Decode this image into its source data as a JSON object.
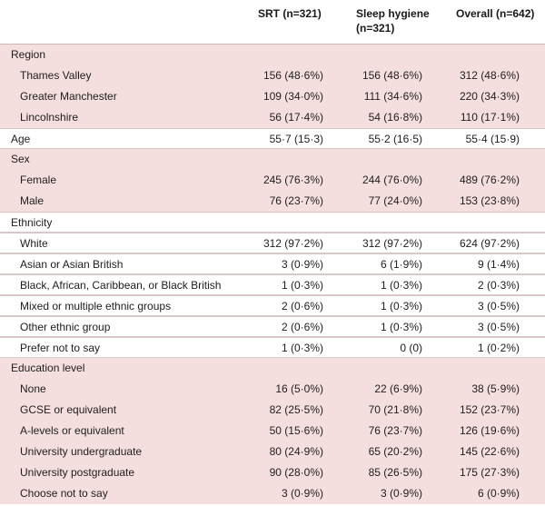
{
  "columns": [
    "SRT (n=321)",
    "Sleep hygiene (n=321)",
    "Overall (n=642)"
  ],
  "rows": [
    {
      "label": "Region",
      "type": "section",
      "bg": "pink",
      "values": []
    },
    {
      "label": "Thames Valley",
      "type": "sub",
      "bg": "pink",
      "values": [
        "156 (48·6%)",
        "156 (48·6%)",
        "312 (48·6%)"
      ]
    },
    {
      "label": "Greater Manchester",
      "type": "sub",
      "bg": "pink",
      "values": [
        "109 (34·0%)",
        "111 (34·6%)",
        "220 (34·3%)"
      ]
    },
    {
      "label": "Lincolnshire",
      "type": "sub",
      "bg": "pink",
      "values": [
        "56 (17·4%)",
        "54 (16·8%)",
        "110 (17·1%)"
      ]
    },
    {
      "label": "Age",
      "type": "section",
      "bg": "white",
      "values": [
        "55·7 (15·3)",
        "55·2 (16·5)",
        "55·4 (15·9)"
      ]
    },
    {
      "label": "Sex",
      "type": "section",
      "bg": "pink",
      "values": []
    },
    {
      "label": "Female",
      "type": "sub",
      "bg": "pink",
      "values": [
        "245 (76·3%)",
        "244 (76·0%)",
        "489 (76·2%)"
      ]
    },
    {
      "label": "Male",
      "type": "sub",
      "bg": "pink",
      "values": [
        "76 (23·7%)",
        "77 (24·0%)",
        "153 (23·8%)"
      ]
    },
    {
      "label": "Ethnicity",
      "type": "section",
      "bg": "white",
      "values": []
    },
    {
      "label": "White",
      "type": "sub",
      "bg": "white",
      "values": [
        "312 (97·2%)",
        "312 (97·2%)",
        "624 (97·2%)"
      ]
    },
    {
      "label": "Asian or Asian British",
      "type": "sub",
      "bg": "white",
      "values": [
        "3 (0·9%)",
        "6 (1·9%)",
        "9 (1·4%)"
      ]
    },
    {
      "label": "Black, African, Caribbean, or Black British",
      "type": "sub",
      "bg": "white",
      "values": [
        "1 (0·3%)",
        "1 (0·3%)",
        "2 (0·3%)"
      ]
    },
    {
      "label": "Mixed or multiple ethnic groups",
      "type": "sub",
      "bg": "white",
      "values": [
        "2 (0·6%)",
        "1 (0·3%)",
        "3 (0·5%)"
      ]
    },
    {
      "label": "Other ethnic group",
      "type": "sub",
      "bg": "white",
      "values": [
        "2 (0·6%)",
        "1 (0·3%)",
        "3 (0·5%)"
      ]
    },
    {
      "label": "Prefer not to say",
      "type": "sub",
      "bg": "white",
      "values": [
        "1 (0·3%)",
        "0 (0)",
        "1 (0·2%)"
      ]
    },
    {
      "label": "Education level",
      "type": "section",
      "bg": "pink",
      "values": []
    },
    {
      "label": "None",
      "type": "sub",
      "bg": "pink",
      "values": [
        "16 (5·0%)",
        "22 (6·9%)",
        "38 (5·9%)"
      ]
    },
    {
      "label": "GCSE or equivalent",
      "type": "sub",
      "bg": "pink",
      "values": [
        "82 (25·5%)",
        "70 (21·8%)",
        "152 (23·7%)"
      ]
    },
    {
      "label": "A-levels or equivalent",
      "type": "sub",
      "bg": "pink",
      "values": [
        "50 (15·6%)",
        "76 (23·7%)",
        "126 (19·6%)"
      ]
    },
    {
      "label": "University undergraduate",
      "type": "sub",
      "bg": "pink",
      "values": [
        "80 (24·9%)",
        "65 (20·2%)",
        "145 (22·6%)"
      ]
    },
    {
      "label": "University postgraduate",
      "type": "sub",
      "bg": "pink",
      "values": [
        "90 (28·0%)",
        "85 (26·5%)",
        "175 (27·3%)"
      ]
    },
    {
      "label": "Choose not to say",
      "type": "sub",
      "bg": "pink",
      "values": [
        "3 (0·9%)",
        "3 (0·9%)",
        "6 (0·9%)"
      ]
    }
  ]
}
